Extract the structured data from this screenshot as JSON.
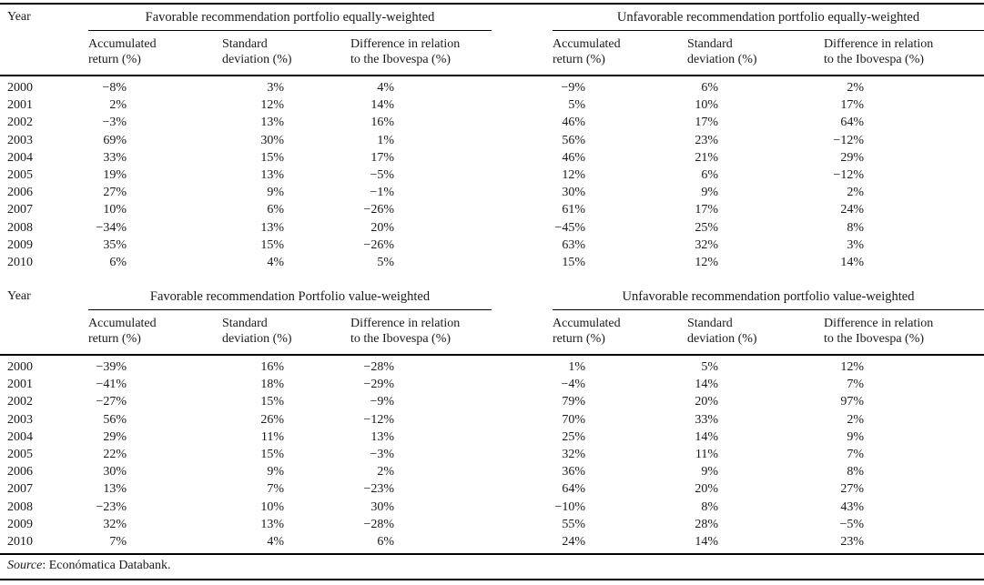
{
  "columns": {
    "year_label": "Year",
    "subheaders": [
      {
        "line1": "Accumulated",
        "line2": "return (%)"
      },
      {
        "line1": "Standard",
        "line2": "deviation (%)"
      },
      {
        "line1": "Difference in relation",
        "line2": "to the Ibovespa (%)"
      }
    ]
  },
  "tables": [
    {
      "groups": [
        {
          "title": "Favorable recommendation portfolio equally-weighted"
        },
        {
          "title": "Unfavorable recommendation portfolio equally-weighted"
        }
      ],
      "rows": [
        {
          "year": "2000",
          "fav": [
            "−8%",
            "3%",
            "4%"
          ],
          "unfav": [
            "−9%",
            "6%",
            "2%"
          ]
        },
        {
          "year": "2001",
          "fav": [
            "2%",
            "12%",
            "14%"
          ],
          "unfav": [
            "5%",
            "10%",
            "17%"
          ]
        },
        {
          "year": "2002",
          "fav": [
            "−3%",
            "13%",
            "16%"
          ],
          "unfav": [
            "46%",
            "17%",
            "64%"
          ]
        },
        {
          "year": "2003",
          "fav": [
            "69%",
            "30%",
            "1%"
          ],
          "unfav": [
            "56%",
            "23%",
            "−12%"
          ]
        },
        {
          "year": "2004",
          "fav": [
            "33%",
            "15%",
            "17%"
          ],
          "unfav": [
            "46%",
            "21%",
            "29%"
          ]
        },
        {
          "year": "2005",
          "fav": [
            "19%",
            "13%",
            "−5%"
          ],
          "unfav": [
            "12%",
            "6%",
            "−12%"
          ]
        },
        {
          "year": "2006",
          "fav": [
            "27%",
            "9%",
            "−1%"
          ],
          "unfav": [
            "30%",
            "9%",
            "2%"
          ]
        },
        {
          "year": "2007",
          "fav": [
            "10%",
            "6%",
            "−26%"
          ],
          "unfav": [
            "61%",
            "17%",
            "24%"
          ]
        },
        {
          "year": "2008",
          "fav": [
            "−34%",
            "13%",
            "20%"
          ],
          "unfav": [
            "−45%",
            "25%",
            "8%"
          ]
        },
        {
          "year": "2009",
          "fav": [
            "35%",
            "15%",
            "−26%"
          ],
          "unfav": [
            "63%",
            "32%",
            "3%"
          ]
        },
        {
          "year": "2010",
          "fav": [
            "6%",
            "4%",
            "5%"
          ],
          "unfav": [
            "15%",
            "12%",
            "14%"
          ]
        }
      ]
    },
    {
      "groups": [
        {
          "title": "Favorable recommendation Portfolio value-weighted"
        },
        {
          "title": "Unfavorable recommendation portfolio value-weighted"
        }
      ],
      "rows": [
        {
          "year": "2000",
          "fav": [
            "−39%",
            "16%",
            "−28%"
          ],
          "unfav": [
            "1%",
            "5%",
            "12%"
          ]
        },
        {
          "year": "2001",
          "fav": [
            "−41%",
            "18%",
            "−29%"
          ],
          "unfav": [
            "−4%",
            "14%",
            "7%"
          ]
        },
        {
          "year": "2002",
          "fav": [
            "−27%",
            "15%",
            "−9%"
          ],
          "unfav": [
            "79%",
            "20%",
            "97%"
          ]
        },
        {
          "year": "2003",
          "fav": [
            "56%",
            "26%",
            "−12%"
          ],
          "unfav": [
            "70%",
            "33%",
            "2%"
          ]
        },
        {
          "year": "2004",
          "fav": [
            "29%",
            "11%",
            "13%"
          ],
          "unfav": [
            "25%",
            "14%",
            "9%"
          ]
        },
        {
          "year": "2005",
          "fav": [
            "22%",
            "15%",
            "−3%"
          ],
          "unfav": [
            "32%",
            "11%",
            "7%"
          ]
        },
        {
          "year": "2006",
          "fav": [
            "30%",
            "9%",
            "2%"
          ],
          "unfav": [
            "36%",
            "9%",
            "8%"
          ]
        },
        {
          "year": "2007",
          "fav": [
            "13%",
            "7%",
            "−23%"
          ],
          "unfav": [
            "64%",
            "20%",
            "27%"
          ]
        },
        {
          "year": "2008",
          "fav": [
            "−23%",
            "10%",
            "30%"
          ],
          "unfav": [
            "−10%",
            "8%",
            "43%"
          ]
        },
        {
          "year": "2009",
          "fav": [
            "32%",
            "13%",
            "−28%"
          ],
          "unfav": [
            "55%",
            "28%",
            "−5%"
          ]
        },
        {
          "year": "2010",
          "fav": [
            "7%",
            "4%",
            "6%"
          ],
          "unfav": [
            "24%",
            "14%",
            "23%"
          ]
        }
      ]
    }
  ],
  "source": {
    "label": "Source",
    "text": ": Económatica Databank."
  },
  "colors": {
    "text": "#1a1a1a",
    "rule": "#000000",
    "background": "#ffffff"
  }
}
